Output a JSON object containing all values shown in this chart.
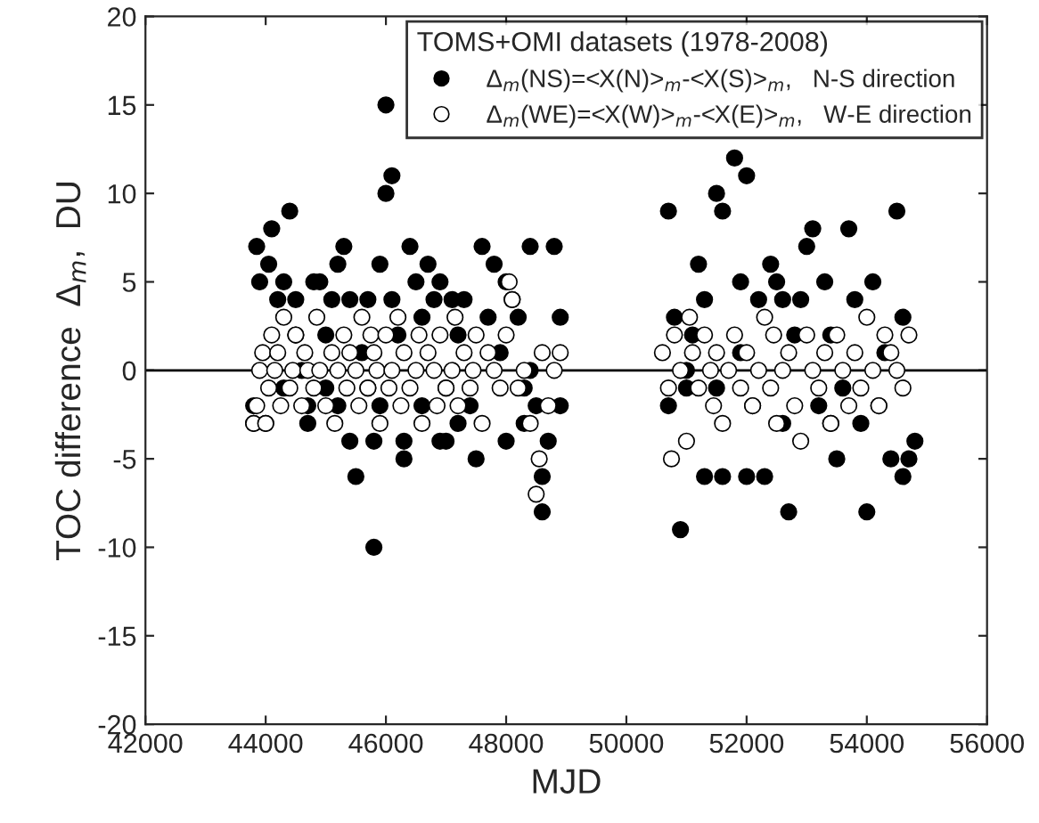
{
  "chart_data": {
    "type": "scatter",
    "xlabel": "MJD",
    "ylabel": "TOC difference  Δ$_{m}$,  DU",
    "legend_title": "TOMS+OMI datasets (1978-2008)",
    "legend": "top right",
    "grid": false,
    "xlim": [
      42000,
      56000
    ],
    "xticks": [
      42000,
      44000,
      46000,
      48000,
      50000,
      52000,
      54000,
      56000
    ],
    "ylim": [
      -20,
      20
    ],
    "yticks": [
      -20,
      -15,
      -10,
      -5,
      0,
      5,
      10,
      15,
      20
    ],
    "ref_lines": [
      {
        "axis": "y",
        "value": 0,
        "color": "#000000"
      }
    ],
    "series": [
      {
        "name": "Δ$_{m}$(NS)=<X(N)>$_{m}$-<X(S)>$_{m}$,   N-S direction",
        "color": "#000000",
        "marker": "circle",
        "x": [
          43800,
          43800,
          43850,
          43900,
          44000,
          44050,
          44100,
          44200,
          44300,
          44300,
          44400,
          44500,
          44500,
          44600,
          44700,
          44800,
          44900,
          45000,
          45000,
          45100,
          45200,
          45200,
          45300,
          45400,
          45400,
          45500,
          45600,
          45700,
          45700,
          45800,
          45800,
          45900,
          45900,
          46000,
          46000,
          46100,
          46100,
          46200,
          46300,
          46300,
          46400,
          46500,
          46600,
          46600,
          46700,
          46800,
          46900,
          47000,
          47100,
          47200,
          47300,
          47400,
          47500,
          47600,
          47700,
          47800,
          47900,
          48000,
          48000,
          48100,
          48200,
          48300,
          48400,
          48400,
          48500,
          48600,
          48600,
          48700,
          48800,
          48900,
          48900,
          47200,
          47000,
          44700,
          46900,
          48300,
          50700,
          50700,
          50800,
          50900,
          51000,
          51100,
          51200,
          51300,
          51300,
          51500,
          51600,
          51600,
          51800,
          51900,
          52000,
          52000,
          52200,
          52300,
          52400,
          52500,
          52600,
          52700,
          52800,
          52900,
          53100,
          53200,
          53300,
          53400,
          53500,
          53600,
          53700,
          53800,
          53900,
          54000,
          54100,
          54200,
          54300,
          54400,
          54500,
          54600,
          54600,
          54700,
          54800,
          51000,
          51500,
          52100,
          53000,
          53400,
          51900,
          52600
        ],
        "values": [
          -2,
          -3,
          7,
          5,
          -3,
          6,
          8,
          4,
          5,
          -1,
          9,
          4,
          2,
          0,
          -3,
          5,
          5,
          2,
          -1,
          4,
          6,
          -2,
          7,
          4,
          -4,
          -6,
          1,
          4,
          -1,
          -10,
          -4,
          6,
          -2,
          15,
          10,
          11,
          4,
          2,
          -4,
          -5,
          7,
          5,
          3,
          -2,
          6,
          4,
          5,
          -1,
          4,
          2,
          4,
          -2,
          -5,
          7,
          3,
          6,
          1,
          -4,
          5,
          4,
          3,
          -1,
          7,
          0,
          -2,
          -8,
          -6,
          -4,
          7,
          -2,
          3,
          -3,
          -4,
          -2,
          -4,
          -3,
          9,
          -2,
          3,
          -9,
          -1,
          2,
          6,
          4,
          -6,
          10,
          9,
          -6,
          12,
          5,
          11,
          -6,
          4,
          -6,
          6,
          5,
          4,
          -8,
          2,
          4,
          8,
          -2,
          5,
          -3,
          -5,
          -1,
          8,
          4,
          -3,
          -8,
          5,
          -2,
          1,
          -5,
          9,
          3,
          -6,
          -5,
          -4,
          0,
          -1,
          -2,
          7,
          2,
          1,
          -3
        ]
      },
      {
        "name": "Δ$_{m}$(WE)=<X(W)>$_{m}$-<X(E)>$_{m}$,   W-E direction",
        "color": "#ffffff",
        "marker": "circle",
        "x": [
          43800,
          43850,
          43900,
          43950,
          44000,
          44050,
          44100,
          44150,
          44200,
          44250,
          44300,
          44400,
          44450,
          44500,
          44600,
          44650,
          44700,
          44800,
          44850,
          44900,
          45000,
          45100,
          45150,
          45200,
          45300,
          45350,
          45400,
          45500,
          45550,
          45600,
          45700,
          45750,
          45800,
          45850,
          45900,
          46000,
          46050,
          46100,
          46200,
          46250,
          46300,
          46400,
          46500,
          46550,
          46600,
          46700,
          46800,
          46850,
          46900,
          47000,
          47100,
          47150,
          47200,
          47300,
          47400,
          47450,
          47500,
          47600,
          47700,
          47800,
          47900,
          48000,
          48050,
          48100,
          48200,
          48300,
          48400,
          48500,
          48550,
          48600,
          48700,
          48800,
          48900,
          50600,
          50700,
          50750,
          50800,
          50900,
          51000,
          51050,
          51100,
          51200,
          51300,
          51400,
          51450,
          51500,
          51600,
          51700,
          51800,
          51900,
          52000,
          52100,
          52200,
          52300,
          52400,
          52450,
          52500,
          52600,
          52700,
          52800,
          52900,
          53000,
          53100,
          53200,
          53300,
          53400,
          53500,
          53600,
          53700,
          53800,
          53900,
          54000,
          54100,
          54200,
          54300,
          54400,
          54500,
          54600,
          54700
        ],
        "values": [
          -3,
          -2,
          0,
          1,
          -3,
          -1,
          2,
          0,
          1,
          -2,
          3,
          -1,
          0,
          2,
          -2,
          1,
          0,
          -1,
          3,
          0,
          -2,
          1,
          -3,
          0,
          2,
          -1,
          1,
          0,
          -2,
          3,
          -1,
          2,
          1,
          0,
          -3,
          2,
          -1,
          0,
          3,
          -2,
          1,
          -1,
          0,
          2,
          -3,
          1,
          0,
          -2,
          2,
          -1,
          0,
          3,
          -2,
          1,
          -1,
          0,
          2,
          -3,
          1,
          0,
          -1,
          2,
          5,
          4,
          -1,
          0,
          -3,
          -7,
          -5,
          1,
          -2,
          0,
          1,
          1,
          -1,
          -5,
          2,
          0,
          -4,
          3,
          1,
          -1,
          2,
          0,
          -2,
          1,
          -3,
          0,
          2,
          -1,
          1,
          -2,
          0,
          3,
          -1,
          2,
          -3,
          0,
          1,
          -2,
          -4,
          2,
          0,
          -1,
          1,
          -3,
          2,
          0,
          -2,
          1,
          -1,
          3,
          0,
          -2,
          2,
          1,
          0,
          -1,
          2
        ]
      }
    ]
  }
}
